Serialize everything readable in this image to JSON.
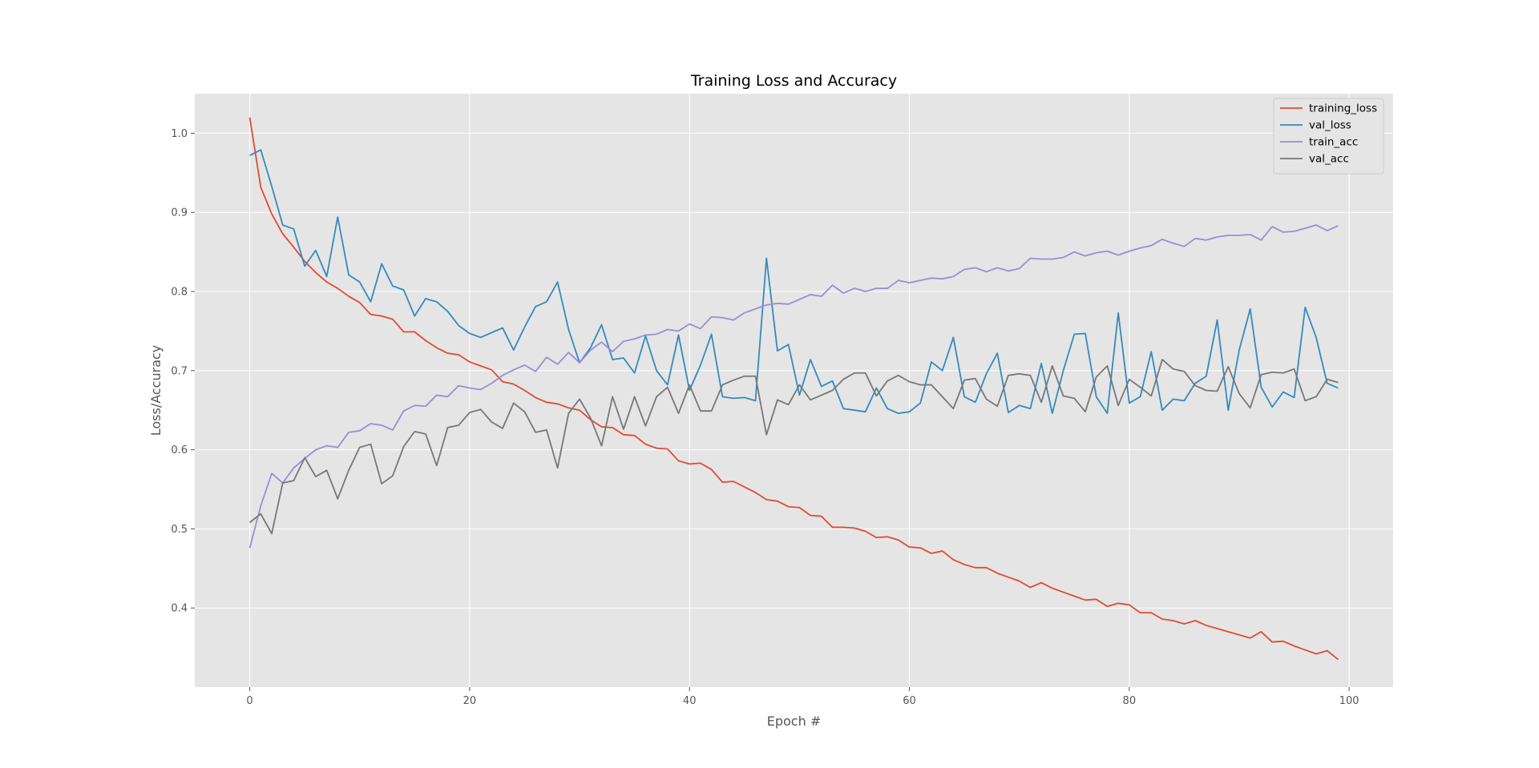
{
  "chart_data": {
    "type": "line",
    "title": "Training Loss and Accuracy",
    "xlabel": "Epoch #",
    "ylabel": "Loss/Accuracy",
    "xlim": [
      -5,
      104
    ],
    "ylim": [
      0.3,
      1.05
    ],
    "xticks": [
      0,
      20,
      40,
      60,
      80,
      100
    ],
    "yticks": [
      0.4,
      0.5,
      0.6,
      0.7,
      0.8,
      0.9,
      1.0
    ],
    "grid": true,
    "legend_position": "top-right",
    "series": [
      {
        "name": "training_loss",
        "color": "#E24A33",
        "values": [
          1.02,
          0.932,
          0.898,
          0.873,
          0.856,
          0.838,
          0.824,
          0.812,
          0.804,
          0.794,
          0.786,
          0.771,
          0.769,
          0.765,
          0.749,
          0.749,
          0.738,
          0.729,
          0.722,
          0.72,
          0.711,
          0.706,
          0.701,
          0.686,
          0.683,
          0.675,
          0.666,
          0.66,
          0.658,
          0.653,
          0.65,
          0.638,
          0.629,
          0.628,
          0.619,
          0.618,
          0.607,
          0.602,
          0.601,
          0.586,
          0.582,
          0.583,
          0.575,
          0.559,
          0.56,
          0.553,
          0.546,
          0.537,
          0.535,
          0.528,
          0.527,
          0.517,
          0.516,
          0.502,
          0.502,
          0.501,
          0.497,
          0.489,
          0.49,
          0.486,
          0.477,
          0.476,
          0.469,
          0.472,
          0.461,
          0.455,
          0.451,
          0.451,
          0.444,
          0.439,
          0.434,
          0.426,
          0.432,
          0.425,
          0.42,
          0.415,
          0.41,
          0.411,
          0.402,
          0.406,
          0.404,
          0.394,
          0.394,
          0.386,
          0.384,
          0.38,
          0.384,
          0.378,
          0.374,
          0.37,
          0.366,
          0.362,
          0.37,
          0.357,
          0.358,
          0.352,
          0.347,
          0.342,
          0.346,
          0.335
        ]
      },
      {
        "name": "val_loss",
        "color": "#348ABD",
        "values": [
          0.972,
          0.979,
          0.933,
          0.884,
          0.879,
          0.832,
          0.852,
          0.819,
          0.894,
          0.821,
          0.812,
          0.787,
          0.835,
          0.807,
          0.802,
          0.769,
          0.791,
          0.787,
          0.775,
          0.757,
          0.747,
          0.742,
          0.748,
          0.754,
          0.726,
          0.755,
          0.781,
          0.787,
          0.812,
          0.752,
          0.71,
          0.729,
          0.758,
          0.714,
          0.716,
          0.697,
          0.744,
          0.7,
          0.682,
          0.745,
          0.675,
          0.707,
          0.746,
          0.667,
          0.665,
          0.666,
          0.662,
          0.842,
          0.725,
          0.733,
          0.669,
          0.714,
          0.68,
          0.687,
          0.652,
          0.65,
          0.648,
          0.678,
          0.652,
          0.646,
          0.648,
          0.659,
          0.711,
          0.7,
          0.742,
          0.667,
          0.66,
          0.696,
          0.722,
          0.647,
          0.656,
          0.652,
          0.709,
          0.646,
          0.7,
          0.746,
          0.747,
          0.667,
          0.646,
          0.773,
          0.659,
          0.667,
          0.724,
          0.65,
          0.664,
          0.662,
          0.684,
          0.693,
          0.764,
          0.65,
          0.726,
          0.778,
          0.679,
          0.654,
          0.673,
          0.666,
          0.78,
          0.742,
          0.684,
          0.678
        ]
      },
      {
        "name": "train_acc",
        "color": "#988ED5",
        "values": [
          0.476,
          0.529,
          0.57,
          0.558,
          0.577,
          0.589,
          0.6,
          0.605,
          0.603,
          0.622,
          0.624,
          0.633,
          0.631,
          0.625,
          0.649,
          0.656,
          0.655,
          0.669,
          0.667,
          0.681,
          0.678,
          0.676,
          0.684,
          0.694,
          0.701,
          0.707,
          0.699,
          0.717,
          0.708,
          0.723,
          0.71,
          0.726,
          0.736,
          0.724,
          0.737,
          0.74,
          0.745,
          0.746,
          0.752,
          0.75,
          0.759,
          0.753,
          0.768,
          0.767,
          0.764,
          0.773,
          0.778,
          0.783,
          0.785,
          0.784,
          0.79,
          0.796,
          0.794,
          0.808,
          0.798,
          0.804,
          0.8,
          0.804,
          0.804,
          0.814,
          0.811,
          0.814,
          0.817,
          0.816,
          0.819,
          0.828,
          0.83,
          0.825,
          0.83,
          0.826,
          0.829,
          0.842,
          0.841,
          0.841,
          0.843,
          0.85,
          0.845,
          0.849,
          0.851,
          0.846,
          0.851,
          0.855,
          0.858,
          0.866,
          0.861,
          0.857,
          0.867,
          0.865,
          0.869,
          0.871,
          0.871,
          0.872,
          0.865,
          0.882,
          0.875,
          0.876,
          0.88,
          0.884,
          0.877,
          0.883
        ]
      },
      {
        "name": "val_acc",
        "color": "#777777",
        "values": [
          0.508,
          0.519,
          0.494,
          0.558,
          0.561,
          0.59,
          0.566,
          0.574,
          0.538,
          0.574,
          0.603,
          0.607,
          0.557,
          0.567,
          0.604,
          0.623,
          0.62,
          0.58,
          0.628,
          0.631,
          0.647,
          0.651,
          0.635,
          0.627,
          0.659,
          0.648,
          0.622,
          0.625,
          0.577,
          0.646,
          0.664,
          0.64,
          0.605,
          0.667,
          0.626,
          0.667,
          0.63,
          0.667,
          0.679,
          0.646,
          0.682,
          0.649,
          0.649,
          0.682,
          0.688,
          0.693,
          0.693,
          0.619,
          0.663,
          0.657,
          0.682,
          0.663,
          0.669,
          0.675,
          0.689,
          0.697,
          0.697,
          0.668,
          0.687,
          0.694,
          0.686,
          0.682,
          0.682,
          0.667,
          0.652,
          0.688,
          0.69,
          0.664,
          0.655,
          0.694,
          0.696,
          0.694,
          0.66,
          0.706,
          0.668,
          0.665,
          0.648,
          0.692,
          0.706,
          0.656,
          0.689,
          0.679,
          0.668,
          0.714,
          0.702,
          0.699,
          0.681,
          0.675,
          0.674,
          0.705,
          0.671,
          0.653,
          0.695,
          0.698,
          0.697,
          0.702,
          0.662,
          0.667,
          0.689,
          0.685
        ]
      }
    ]
  }
}
